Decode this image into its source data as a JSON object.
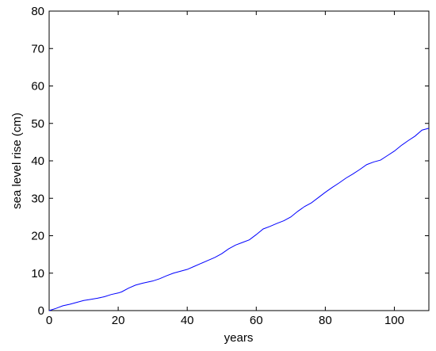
{
  "chart_data": {
    "type": "line",
    "xlabel": "years",
    "ylabel": "sea level rise (cm)",
    "x": [
      0,
      2,
      4,
      6,
      8,
      10,
      12,
      14,
      16,
      18,
      20,
      21,
      23,
      25,
      27,
      30,
      32,
      34,
      36,
      38,
      40,
      42,
      44,
      46,
      48,
      50,
      52,
      54,
      56,
      58,
      60,
      62,
      64,
      66,
      68,
      70,
      72,
      74,
      76,
      78,
      80,
      82,
      84,
      86,
      88,
      90,
      92,
      94,
      96,
      98,
      100,
      102,
      104,
      106,
      108,
      110
    ],
    "series": [
      {
        "color": "#0000ff",
        "values": [
          0,
          0.6,
          1.3,
          1.7,
          2.2,
          2.7,
          3.0,
          3.3,
          3.7,
          4.3,
          4.7,
          5.0,
          6.0,
          6.8,
          7.3,
          7.9,
          8.5,
          9.3,
          10.0,
          10.5,
          11.0,
          11.8,
          12.6,
          13.4,
          14.2,
          15.2,
          16.5,
          17.5,
          18.2,
          18.9,
          20.3,
          21.8,
          22.5,
          23.3,
          24.0,
          25.0,
          26.5,
          27.8,
          28.8,
          30.2,
          31.6,
          32.9,
          34.1,
          35.4,
          36.5,
          37.7,
          39.0,
          39.7,
          40.2,
          41.4,
          42.6,
          44.1,
          45.4,
          46.6,
          48.2,
          48.7
        ]
      }
    ],
    "xlim": [
      0,
      110
    ],
    "xticks": [
      0,
      20,
      40,
      60,
      80,
      100
    ],
    "ylim": [
      0,
      80
    ],
    "yticks": [
      0,
      10,
      20,
      30,
      40,
      50,
      60,
      70,
      80
    ],
    "grid": false
  }
}
